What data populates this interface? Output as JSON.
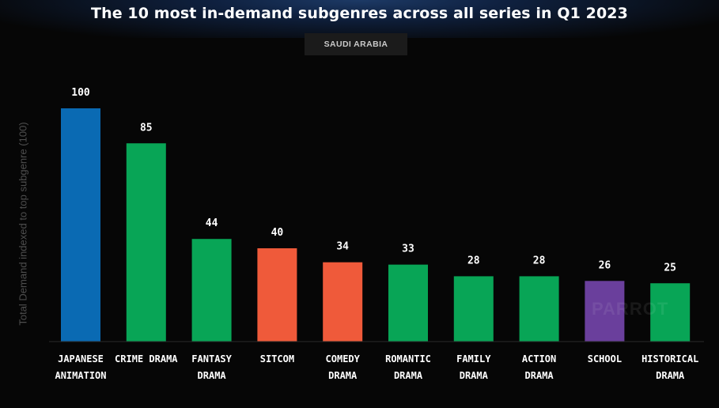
{
  "title": "The 10 most in-demand subgenres across all series in Q1 2023",
  "region": "SAUDI ARABIA",
  "watermark": "PARROT",
  "chart_data": {
    "type": "bar",
    "title": "The 10 most in-demand subgenres across all series in Q1 2023",
    "ylabel": "Total Demand indexed to top subgenre (100)",
    "xlabel": "",
    "ylim": [
      0,
      100
    ],
    "grid": false,
    "categories": [
      [
        "JAPANESE",
        "ANIMATION"
      ],
      [
        "CRIME DRAMA"
      ],
      [
        "FANTASY",
        "DRAMA"
      ],
      [
        "SITCOM"
      ],
      [
        "COMEDY",
        "DRAMA"
      ],
      [
        "ROMANTIC",
        "DRAMA"
      ],
      [
        "FAMILY",
        "DRAMA"
      ],
      [
        "ACTION",
        "DRAMA"
      ],
      [
        "SCHOOL"
      ],
      [
        "HISTORICAL",
        "DRAMA"
      ]
    ],
    "values": [
      100,
      85,
      44,
      40,
      34,
      33,
      28,
      28,
      26,
      25
    ],
    "colors": [
      "#0a6ab3",
      "#08a556",
      "#08a556",
      "#ef5a3a",
      "#ef5a3a",
      "#08a556",
      "#08a556",
      "#08a556",
      "#6a3f9c",
      "#08a556"
    ]
  }
}
